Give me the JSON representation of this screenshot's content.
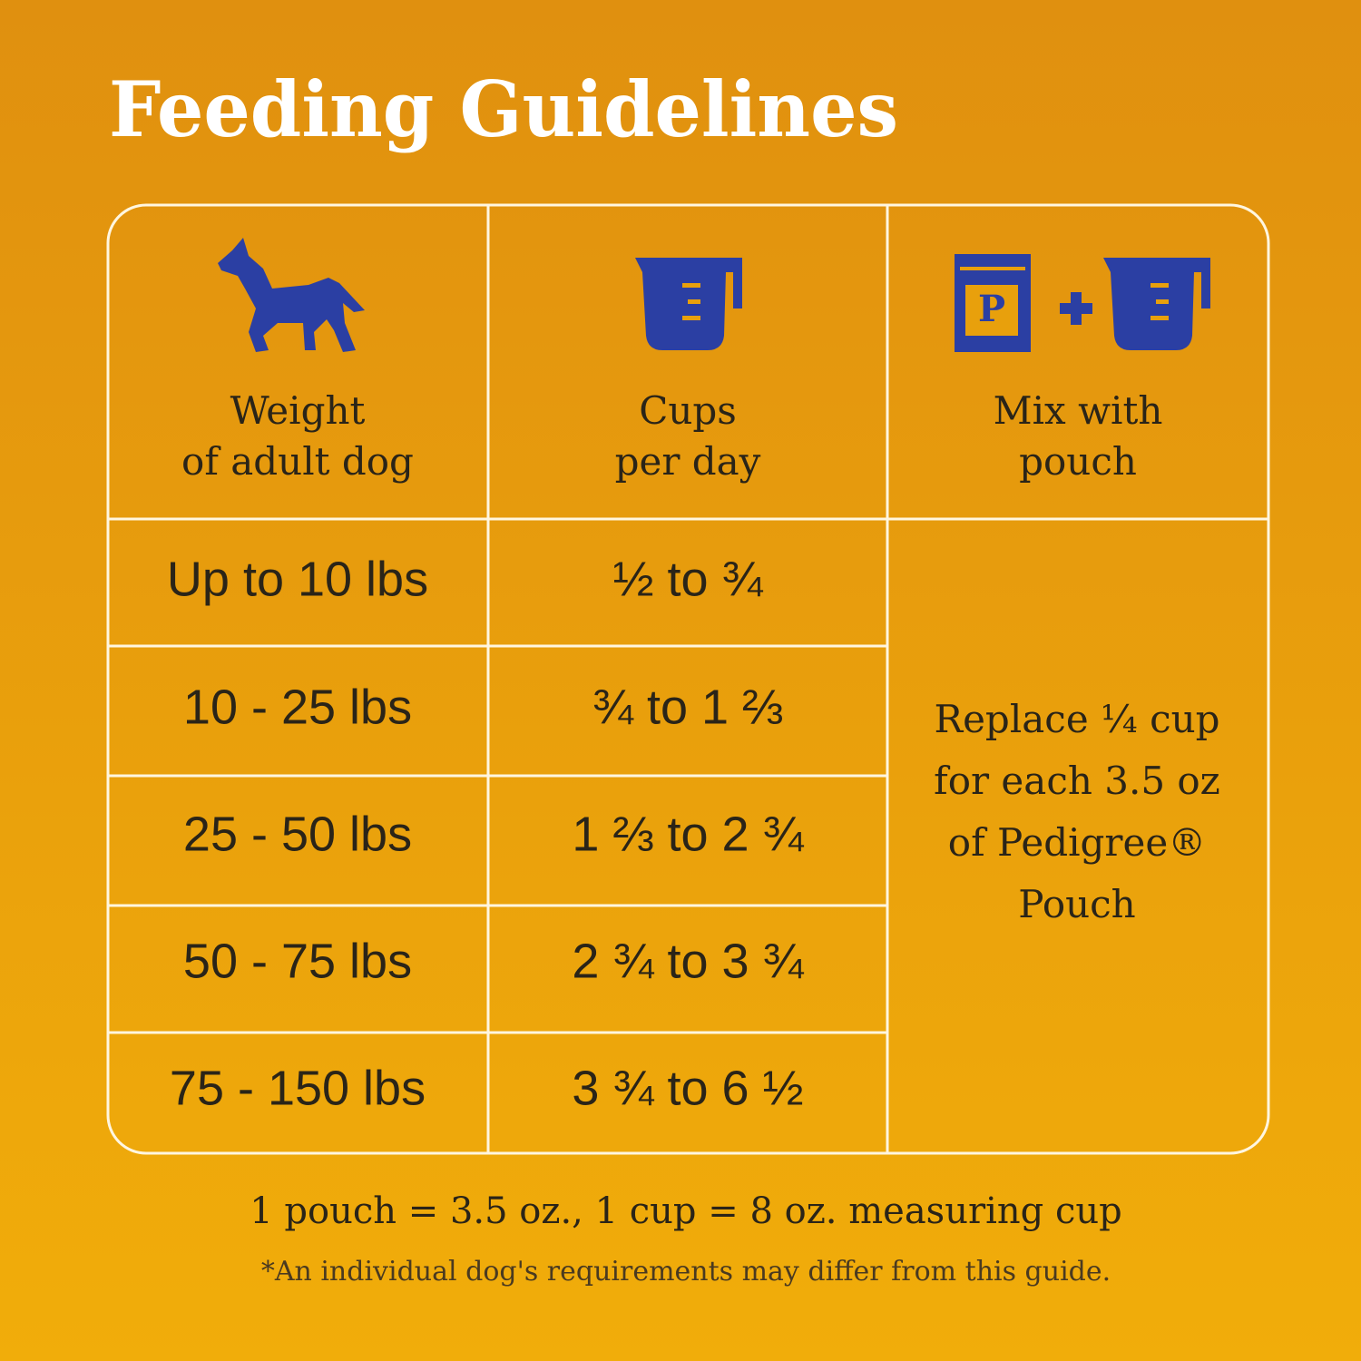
{
  "header": {
    "title": "Feeding Guidelines"
  },
  "table": {
    "headers": [
      [
        "Weight",
        "of adult dog"
      ],
      [
        "Cups",
        "per day"
      ],
      [
        "Mix with",
        "pouch"
      ]
    ],
    "pouch_icon_letter": "P",
    "rows": [
      [
        "Up to 10 lbs",
        "½ to ¾"
      ],
      [
        "10 - 25 lbs",
        "¾ to 1 ⅔"
      ],
      [
        "25 - 50 lbs",
        "1 ⅔ to 2 ¾"
      ],
      [
        "50 - 75 lbs",
        "2 ¾ to 3 ¾"
      ],
      [
        "75 - 150 lbs",
        "3 ¾ to 6 ½"
      ]
    ],
    "mix_note": [
      "Replace ¼ cup",
      "for each 3.5 oz",
      "of Pedigree®",
      "Pouch"
    ]
  },
  "footer": {
    "measure": "1 pouch = 3.5 oz., 1 cup = 8 oz. measuring cup",
    "disclaimer": "*An individual dog's requirements may differ from this guide."
  }
}
